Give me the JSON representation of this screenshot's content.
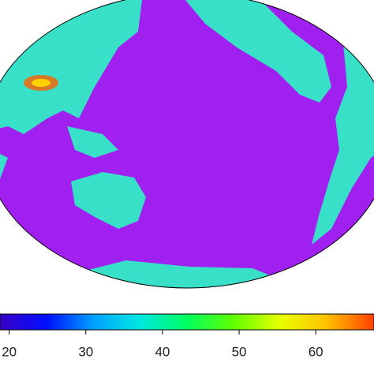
{
  "colorbar": {
    "lim": [
      18.8,
      67.6
    ],
    "ticks": [
      20,
      30,
      40,
      50,
      60
    ],
    "colors": [
      "#3a00c8",
      "#0010ff",
      "#00a0ff",
      "#00e8e0",
      "#00ff60",
      "#60ff00",
      "#e8ff00",
      "#ffc000",
      "#ff4000"
    ]
  },
  "map": {
    "ocean_color": "#a020f0",
    "land_color": "#38e0c8"
  }
}
